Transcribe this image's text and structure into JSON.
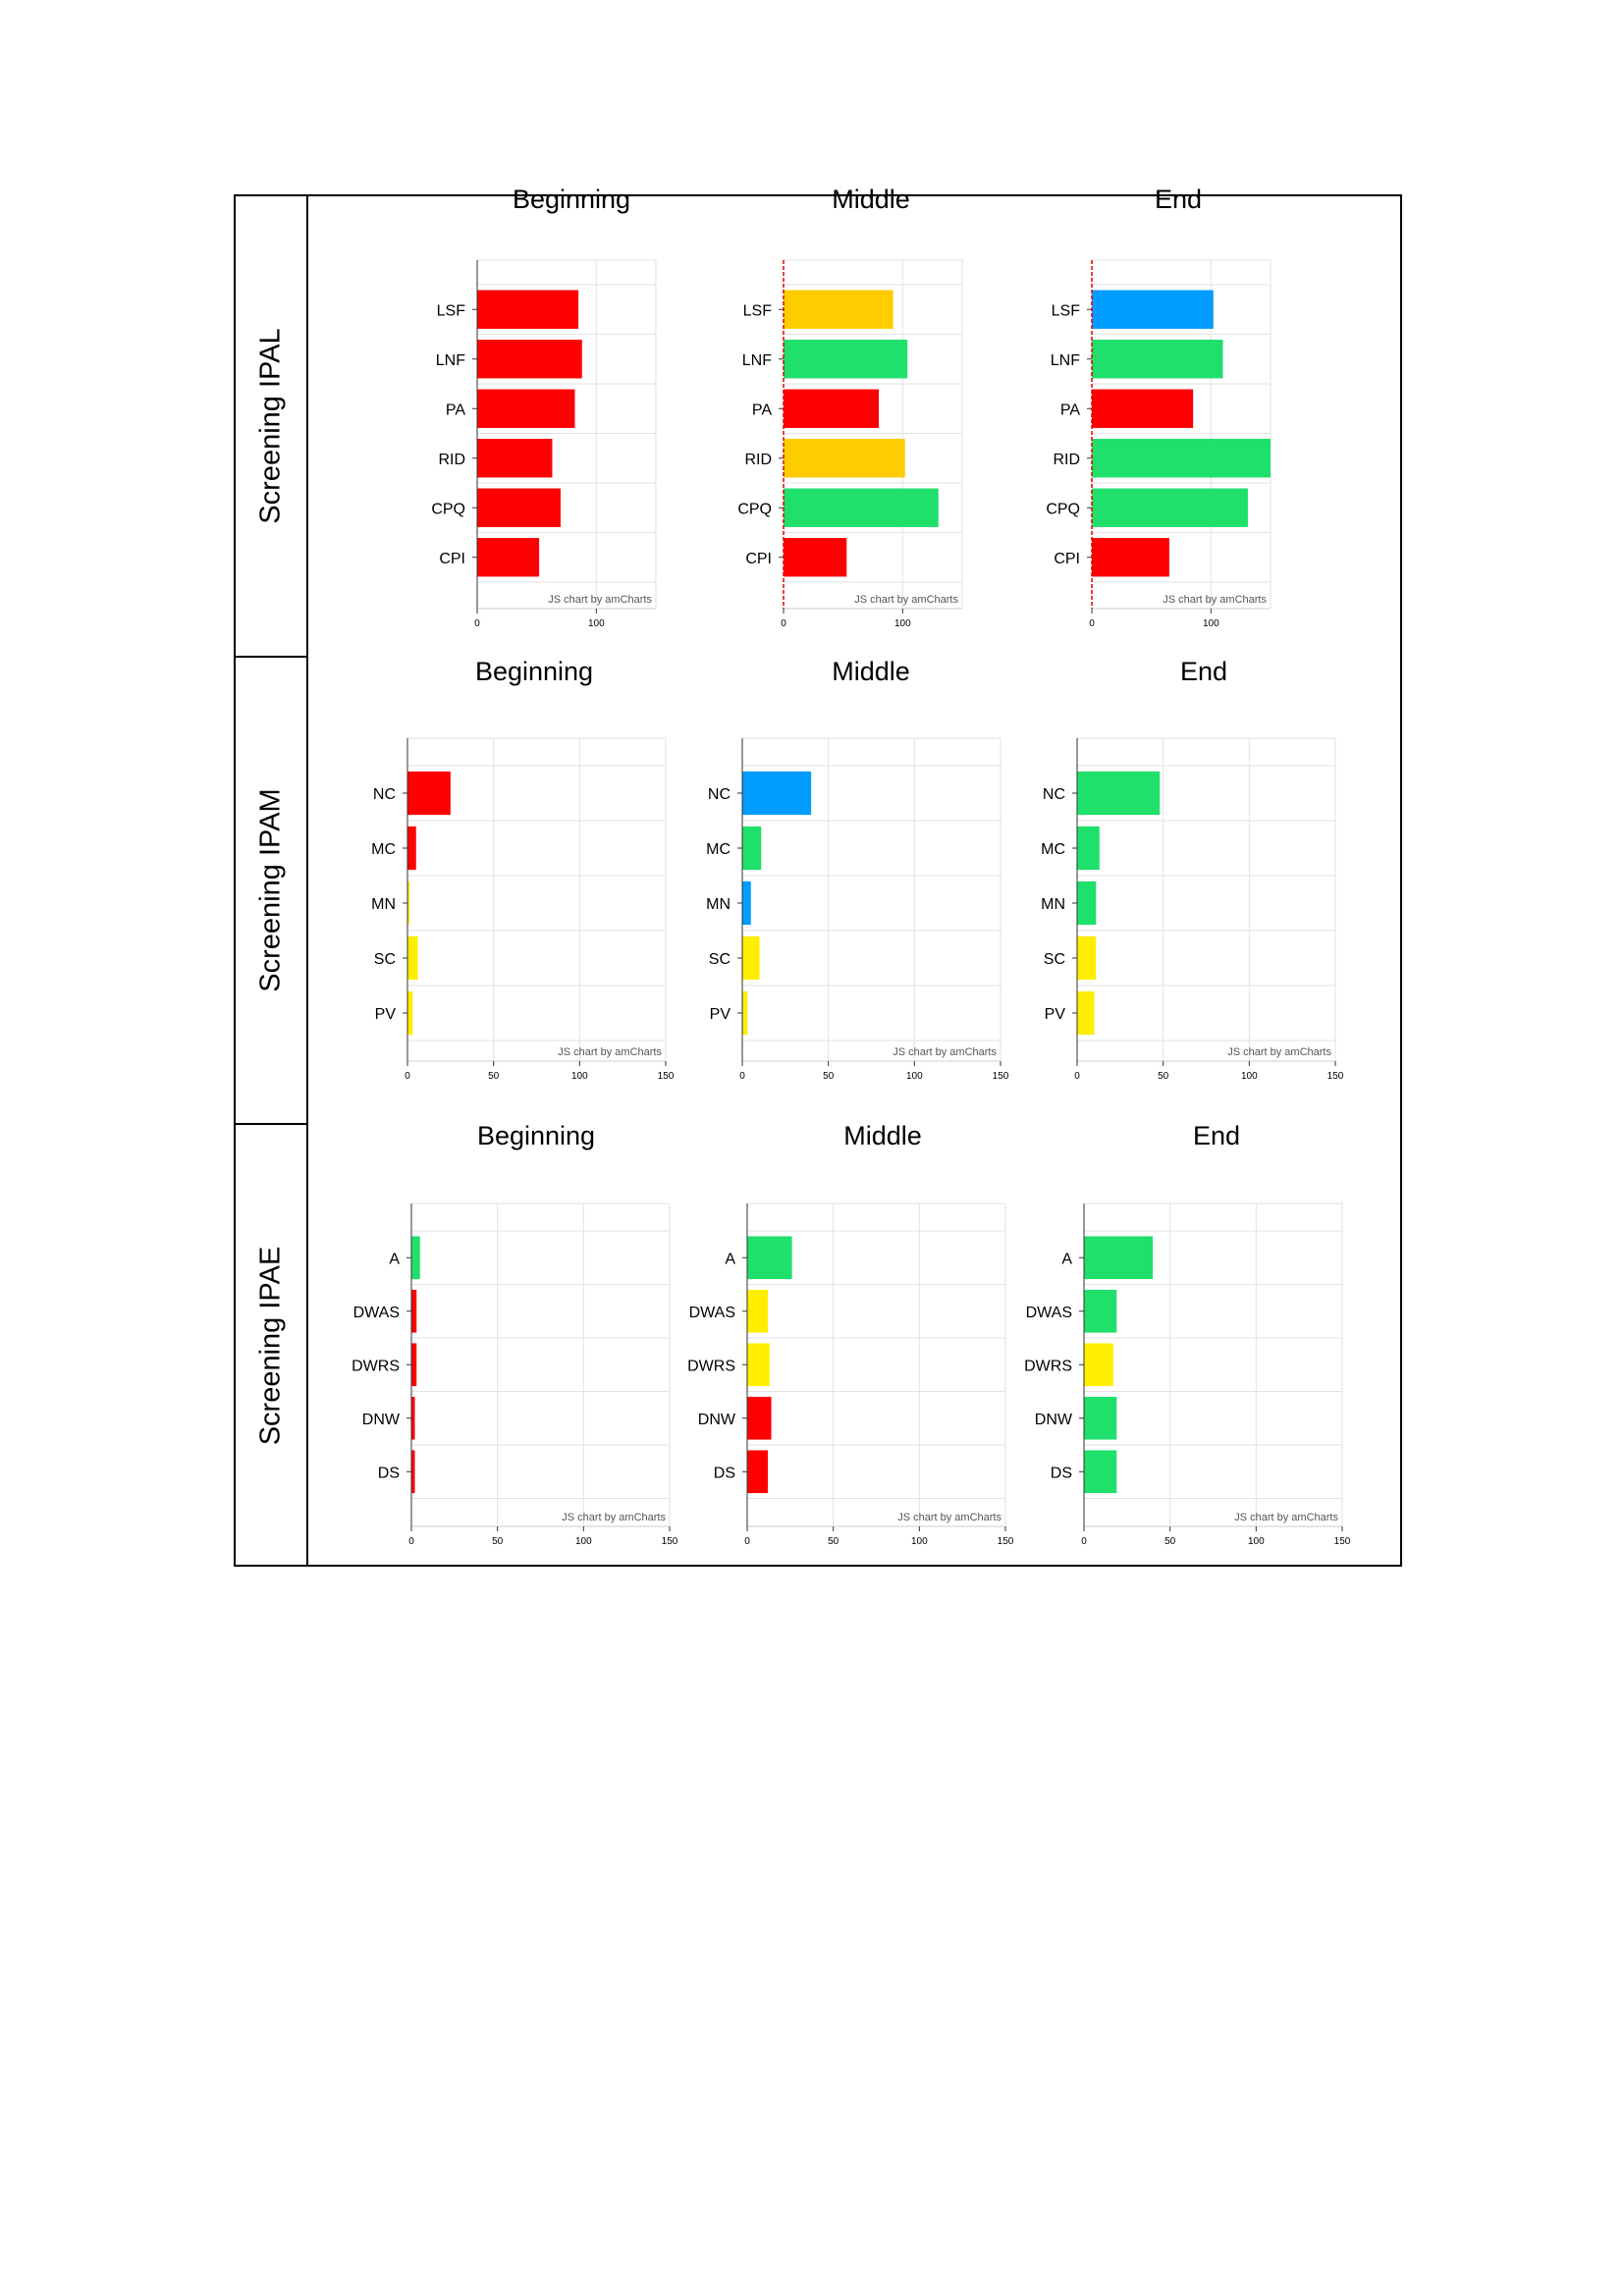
{
  "row_labels": [
    "Screening IPAL",
    "Screening IPAM",
    "Screening IPAE"
  ],
  "watermark": "JS chart by amCharts",
  "colors": {
    "red": "#ff0000",
    "orange": "#ffcc00",
    "yellow": "#ffee00",
    "green": "#1fe06a",
    "blue": "#009cff"
  },
  "chart_data": [
    {
      "type": "bar",
      "orientation": "horizontal",
      "row": "Screening IPAL",
      "title": "Beginning",
      "categories": [
        "LSF",
        "LNF",
        "PA",
        "RID",
        "CPQ",
        "CPI"
      ],
      "values": [
        85,
        88,
        82,
        63,
        70,
        52
      ],
      "colors": [
        "red",
        "red",
        "red",
        "red",
        "red",
        "red"
      ],
      "xlim": [
        0,
        150
      ],
      "xticks": [
        0,
        100
      ]
    },
    {
      "type": "bar",
      "orientation": "horizontal",
      "row": "Screening IPAL",
      "title": "Middle",
      "categories": [
        "LSF",
        "LNF",
        "PA",
        "RID",
        "CPQ",
        "CPI"
      ],
      "values": [
        92,
        104,
        80,
        102,
        130,
        53
      ],
      "colors": [
        "orange",
        "green",
        "red",
        "orange",
        "green",
        "red"
      ],
      "xlim": [
        0,
        150
      ],
      "xticks": [
        0,
        100
      ]
    },
    {
      "type": "bar",
      "orientation": "horizontal",
      "row": "Screening IPAL",
      "title": "End",
      "categories": [
        "LSF",
        "LNF",
        "PA",
        "RID",
        "CPQ",
        "CPI"
      ],
      "values": [
        102,
        110,
        85,
        150,
        131,
        65
      ],
      "colors": [
        "blue",
        "green",
        "red",
        "green",
        "green",
        "red"
      ],
      "xlim": [
        0,
        150
      ],
      "xticks": [
        0,
        100
      ]
    },
    {
      "type": "bar",
      "orientation": "horizontal",
      "row": "Screening IPAM",
      "title": "Beginning",
      "categories": [
        "NC",
        "MC",
        "MN",
        "SC",
        "PV"
      ],
      "values": [
        25,
        5,
        1,
        6,
        3
      ],
      "colors": [
        "red",
        "red",
        "yellow",
        "yellow",
        "yellow"
      ],
      "xlim": [
        0,
        150
      ],
      "xticks": [
        0,
        50,
        100,
        150
      ]
    },
    {
      "type": "bar",
      "orientation": "horizontal",
      "row": "Screening IPAM",
      "title": "Middle",
      "categories": [
        "NC",
        "MC",
        "MN",
        "SC",
        "PV"
      ],
      "values": [
        40,
        11,
        5,
        10,
        3
      ],
      "colors": [
        "blue",
        "green",
        "blue",
        "yellow",
        "yellow"
      ],
      "xlim": [
        0,
        150
      ],
      "xticks": [
        0,
        50,
        100,
        150
      ]
    },
    {
      "type": "bar",
      "orientation": "horizontal",
      "row": "Screening IPAM",
      "title": "End",
      "categories": [
        "NC",
        "MC",
        "MN",
        "SC",
        "PV"
      ],
      "values": [
        48,
        13,
        11,
        11,
        10
      ],
      "colors": [
        "green",
        "green",
        "green",
        "yellow",
        "yellow"
      ],
      "xlim": [
        0,
        150
      ],
      "xticks": [
        0,
        50,
        100,
        150
      ]
    },
    {
      "type": "bar",
      "orientation": "horizontal",
      "row": "Screening IPAE",
      "title": "Beginning",
      "categories": [
        "A",
        "DWAS",
        "DWRS",
        "DNW",
        "DS"
      ],
      "values": [
        5,
        3,
        3,
        2,
        2
      ],
      "colors": [
        "green",
        "red",
        "red",
        "red",
        "red"
      ],
      "xlim": [
        0,
        150
      ],
      "xticks": [
        0,
        50,
        100,
        150
      ]
    },
    {
      "type": "bar",
      "orientation": "horizontal",
      "row": "Screening IPAE",
      "title": "Middle",
      "categories": [
        "A",
        "DWAS",
        "DWRS",
        "DNW",
        "DS"
      ],
      "values": [
        26,
        12,
        13,
        14,
        12
      ],
      "colors": [
        "green",
        "yellow",
        "yellow",
        "red",
        "red"
      ],
      "xlim": [
        0,
        150
      ],
      "xticks": [
        0,
        50,
        100,
        150
      ]
    },
    {
      "type": "bar",
      "orientation": "horizontal",
      "row": "Screening IPAE",
      "title": "End",
      "categories": [
        "A",
        "DWAS",
        "DWRS",
        "DNW",
        "DS"
      ],
      "values": [
        40,
        19,
        17,
        19,
        19
      ],
      "colors": [
        "green",
        "green",
        "yellow",
        "green",
        "green"
      ],
      "xlim": [
        0,
        150
      ],
      "xticks": [
        0,
        50,
        100,
        150
      ]
    }
  ]
}
